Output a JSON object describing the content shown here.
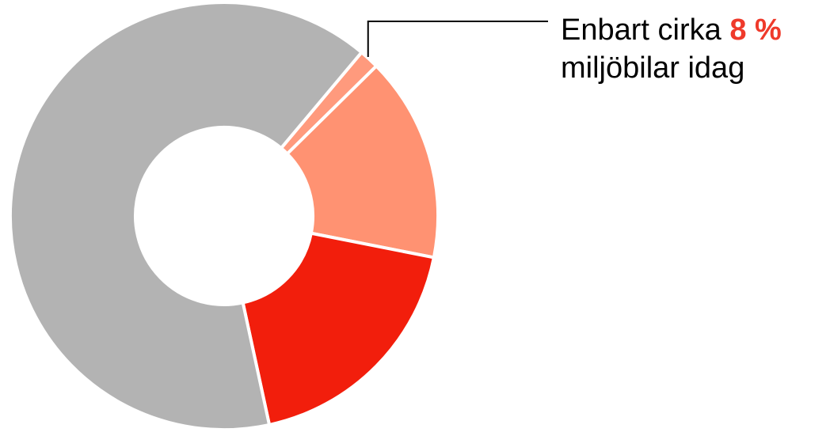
{
  "chart_data": {
    "type": "pie",
    "variant": "donut",
    "title": "",
    "slices": [
      {
        "value": 1.5,
        "color": "#ff9a7d"
      },
      {
        "value": 15.5,
        "color": "#ff9272"
      },
      {
        "value": 18.5,
        "color": "#f21e0c"
      },
      {
        "value": 64.5,
        "color": "#b3b3b3"
      }
    ],
    "annotation": {
      "prefix": "Enbart cirka ",
      "highlight": "8 %",
      "line2": "miljöbilar idag",
      "highlight_color": "#ef3a2b",
      "target_slice": 0
    },
    "legend": "none"
  }
}
